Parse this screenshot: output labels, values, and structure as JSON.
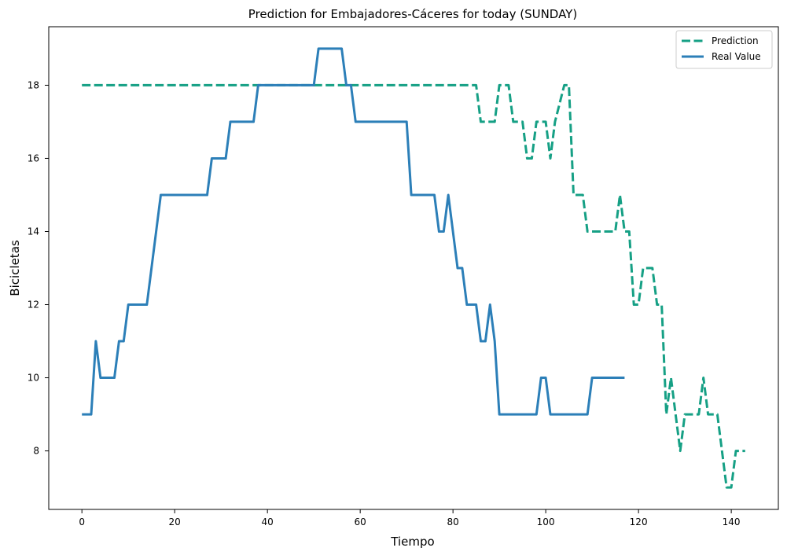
{
  "chart_data": {
    "type": "line",
    "title": "Prediction for Embajadores-Cáceres for today (SUNDAY)",
    "xlabel": "Tiempo",
    "ylabel": "Bicicletas",
    "xlim": [
      -7.15,
      150.15
    ],
    "ylim": [
      6.4,
      19.6
    ],
    "xticks": [
      0,
      20,
      40,
      60,
      80,
      100,
      120,
      140
    ],
    "yticks": [
      8,
      10,
      12,
      14,
      16,
      18
    ],
    "grid": false,
    "legend_position": "top-right",
    "series": [
      {
        "name": "Prediction",
        "color": "#16a085",
        "dash": "dashed",
        "points": [
          [
            0,
            18
          ],
          [
            85,
            18
          ],
          [
            86,
            17
          ],
          [
            89,
            17
          ],
          [
            90,
            18
          ],
          [
            92,
            18
          ],
          [
            93,
            17
          ],
          [
            95,
            17
          ],
          [
            96,
            16
          ],
          [
            97,
            16
          ],
          [
            98,
            17
          ],
          [
            100,
            17
          ],
          [
            101,
            16
          ],
          [
            102,
            17
          ],
          [
            104,
            18
          ],
          [
            105,
            18
          ],
          [
            106,
            15
          ],
          [
            108,
            15
          ],
          [
            109,
            14
          ],
          [
            115,
            14
          ],
          [
            116,
            15
          ],
          [
            117,
            14
          ],
          [
            118,
            14
          ],
          [
            119,
            12
          ],
          [
            120,
            12
          ],
          [
            121,
            13
          ],
          [
            123,
            13
          ],
          [
            124,
            12
          ],
          [
            125,
            12
          ],
          [
            126,
            9
          ],
          [
            127,
            10
          ],
          [
            128,
            9
          ],
          [
            129,
            8
          ],
          [
            130,
            9
          ],
          [
            133,
            9
          ],
          [
            134,
            10
          ],
          [
            135,
            9
          ],
          [
            137,
            9
          ],
          [
            138,
            8
          ],
          [
            139,
            7
          ],
          [
            140,
            7
          ],
          [
            141,
            8
          ],
          [
            143,
            8
          ]
        ]
      },
      {
        "name": "Real Value",
        "color": "#2c7fb8",
        "dash": "solid",
        "points": [
          [
            0,
            9
          ],
          [
            2,
            9
          ],
          [
            3,
            11
          ],
          [
            4,
            10
          ],
          [
            7,
            10
          ],
          [
            8,
            11
          ],
          [
            9,
            11
          ],
          [
            10,
            12
          ],
          [
            14,
            12
          ],
          [
            17,
            15
          ],
          [
            27,
            15
          ],
          [
            28,
            16
          ],
          [
            31,
            16
          ],
          [
            32,
            17
          ],
          [
            37,
            17
          ],
          [
            38,
            18
          ],
          [
            50,
            18
          ],
          [
            51,
            19
          ],
          [
            56,
            19
          ],
          [
            57,
            18
          ],
          [
            58,
            18
          ],
          [
            59,
            17
          ],
          [
            70,
            17
          ],
          [
            71,
            15
          ],
          [
            76,
            15
          ],
          [
            77,
            14
          ],
          [
            78,
            14
          ],
          [
            79,
            15
          ],
          [
            81,
            13
          ],
          [
            82,
            13
          ],
          [
            83,
            12
          ],
          [
            85,
            12
          ],
          [
            86,
            11
          ],
          [
            87,
            11
          ],
          [
            88,
            12
          ],
          [
            89,
            11
          ],
          [
            90,
            9
          ],
          [
            98,
            9
          ],
          [
            99,
            10
          ],
          [
            100,
            10
          ],
          [
            101,
            9
          ],
          [
            109,
            9
          ],
          [
            110,
            10
          ],
          [
            117,
            10
          ]
        ]
      }
    ]
  }
}
